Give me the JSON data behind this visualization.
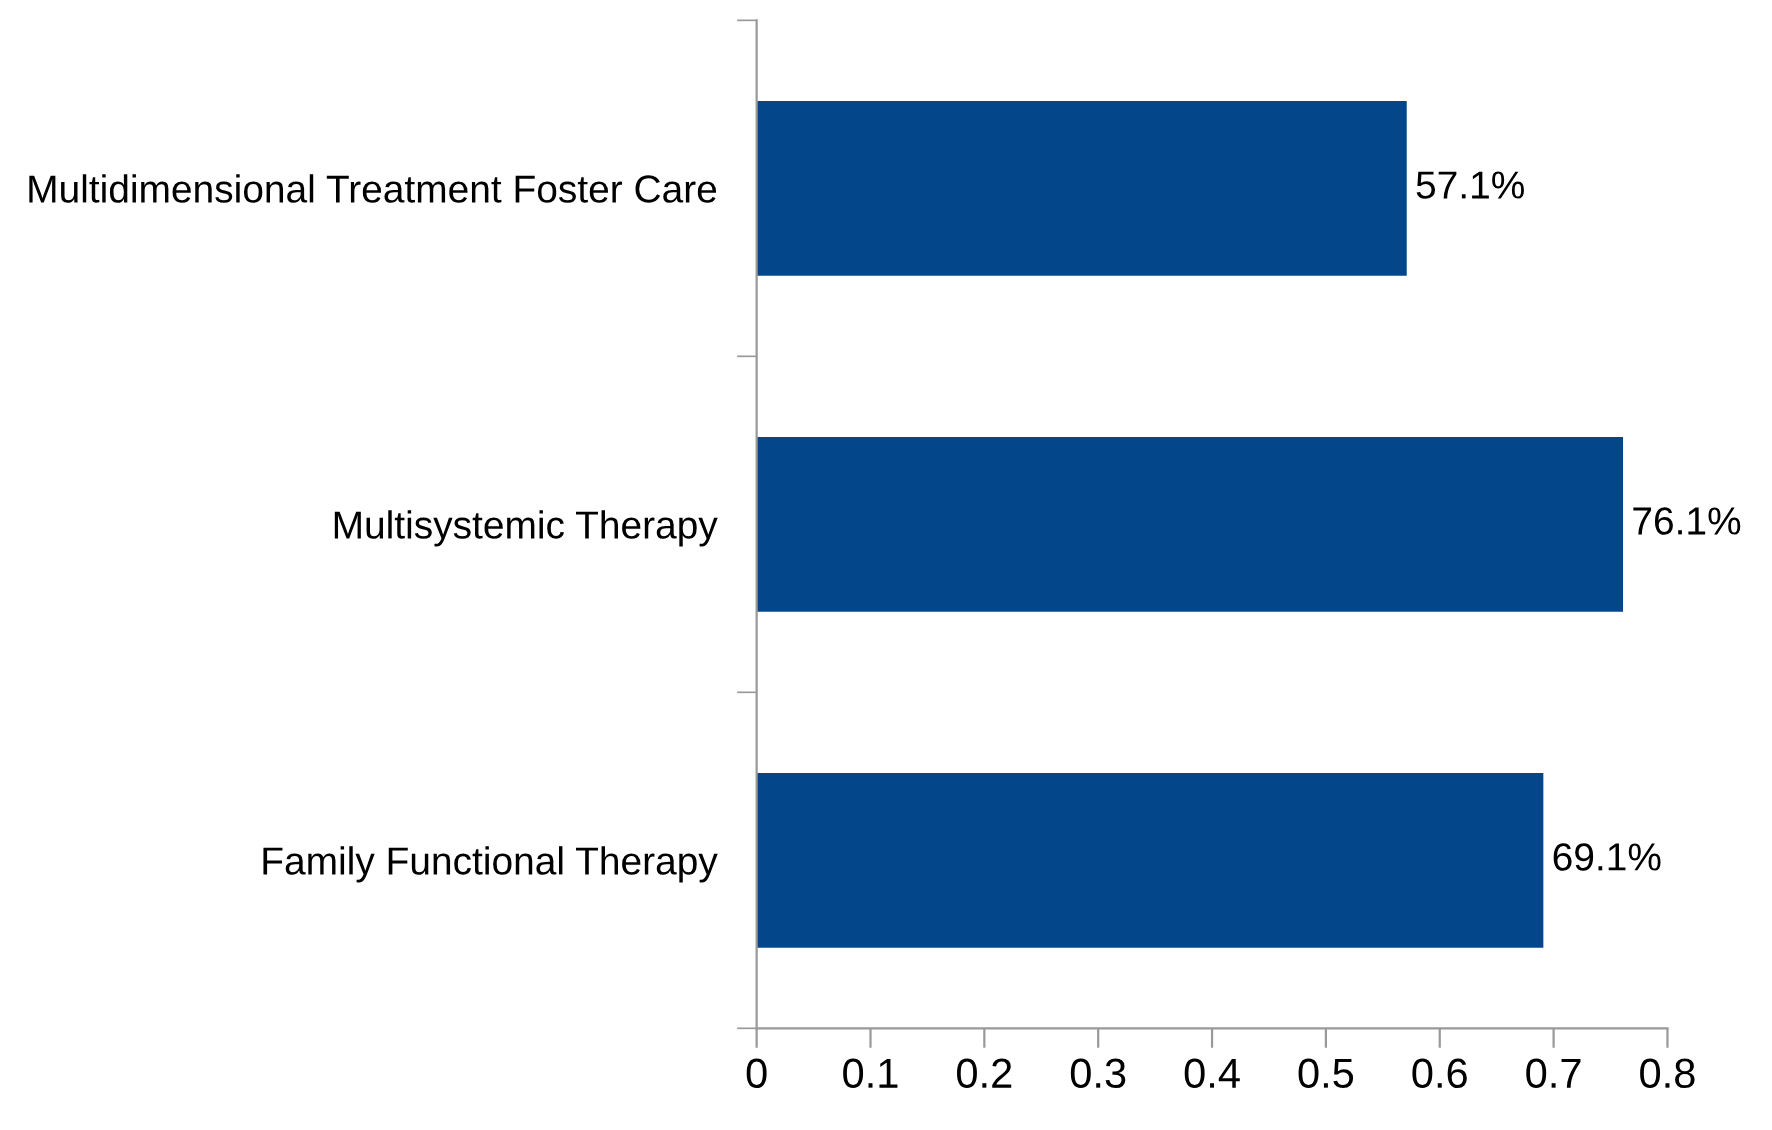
{
  "chart_data": {
    "type": "bar",
    "orientation": "horizontal",
    "categories": [
      "Multidimensional Treatment Foster Care",
      "Multisystemic Therapy",
      "Family Functional Therapy"
    ],
    "values": [
      0.571,
      0.761,
      0.691
    ],
    "color": "#03468a",
    "value_labels": [
      "57.1%",
      "76.1%",
      "69.1%"
    ],
    "xlim": [
      0,
      0.8
    ],
    "xticks": [
      0,
      0.1,
      0.2,
      0.3,
      0.4,
      0.5,
      0.6,
      0.7,
      0.8
    ],
    "grid": false,
    "legend": false
  }
}
